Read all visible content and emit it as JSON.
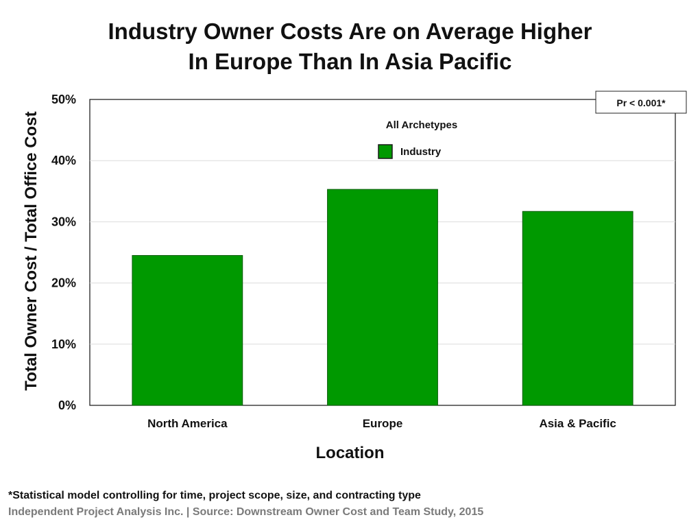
{
  "chart_data": {
    "type": "bar",
    "title_lines": [
      "Industry Owner Costs Are on Average Higher",
      "In Europe Than In Asia Pacific"
    ],
    "xlabel": "Location",
    "ylabel": "Total Owner Cost / Total Office Cost",
    "categories": [
      "North America",
      "Europe",
      "Asia & Pacific"
    ],
    "series": [
      {
        "name": "Industry",
        "values": [
          24.5,
          35.3,
          31.7
        ],
        "color": "#009900"
      }
    ],
    "ylim": [
      0,
      50
    ],
    "yticks": [
      0,
      10,
      20,
      30,
      40,
      50
    ],
    "ytick_labels": [
      "0%",
      "10%",
      "20%",
      "30%",
      "40%",
      "50%"
    ],
    "grid": true,
    "legend_title": "All Archetypes",
    "legend_position": "top-center",
    "annotation": "Pr < 0.001*"
  },
  "footnote": "*Statistical model controlling for time, project scope, size, and contracting type",
  "source": "Independent Project Analysis Inc. | Source: Downstream Owner Cost and Team Study, 2015"
}
